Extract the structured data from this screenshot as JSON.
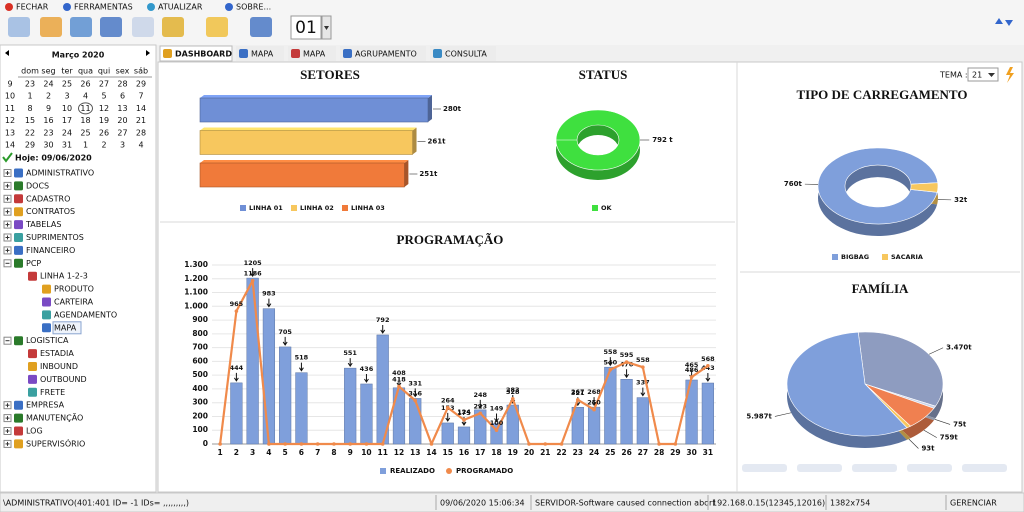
{
  "toolbar": {
    "menu": [
      "FECHAR",
      "FERRAMENTAS",
      "ATUALIZAR",
      "SOBRE..."
    ],
    "counter": "01"
  },
  "calendar": {
    "month": "Março 2020",
    "weekdays": [
      "dom",
      "seg",
      "ter",
      "qua",
      "qui",
      "sex",
      "sáb"
    ],
    "weeks": [
      {
        "number": 9,
        "days": [
          23,
          24,
          25,
          26,
          27,
          28,
          29
        ]
      },
      {
        "number": 10,
        "days": [
          1,
          2,
          3,
          4,
          5,
          6,
          7
        ]
      },
      {
        "number": 11,
        "days": [
          8,
          9,
          10,
          11,
          12,
          13,
          14
        ]
      },
      {
        "number": 12,
        "days": [
          15,
          16,
          17,
          18,
          19,
          20,
          21
        ]
      },
      {
        "number": 13,
        "days": [
          22,
          23,
          24,
          25,
          26,
          27,
          28
        ]
      },
      {
        "number": 14,
        "days": [
          29,
          30,
          31,
          1,
          2,
          3,
          4
        ]
      }
    ],
    "today": "Hoje: 09/06/2020"
  },
  "tree": [
    {
      "label": "ADMINISTRATIVO"
    },
    {
      "label": "DOCS"
    },
    {
      "label": "CADASTRO"
    },
    {
      "label": "CONTRATOS"
    },
    {
      "label": "TABELAS"
    },
    {
      "label": "SUPRIMENTOS"
    },
    {
      "label": "FINANCEIRO"
    },
    {
      "label": "PCP",
      "children": [
        {
          "label": "LINHA 1-2-3",
          "children": [
            {
              "label": "PRODUTO"
            },
            {
              "label": "CARTEIRA"
            },
            {
              "label": "AGENDAMENTO"
            },
            {
              "label": "MAPA"
            }
          ]
        }
      ]
    },
    {
      "label": "LOGISTICA",
      "children": [
        {
          "label": "ESTADIA"
        },
        {
          "label": "INBOUND"
        },
        {
          "label": "OUTBOUND"
        },
        {
          "label": "FRETE"
        }
      ]
    },
    {
      "label": "EMPRESA"
    },
    {
      "label": "MANUTENÇÃO"
    },
    {
      "label": "LOG"
    },
    {
      "label": "SUPERVISÓRIO"
    }
  ],
  "tabs": [
    "DASHBOARD",
    "MAPA",
    "MAPA",
    "AGRUPAMENTO",
    "CONSULTA"
  ],
  "theme": {
    "label": "TEMA :",
    "value": "21"
  },
  "chart_data": [
    {
      "type": "hbar",
      "title": "SETORES",
      "categories": [
        "LINHA 01",
        "LINHA 02",
        "LINHA 03"
      ],
      "values": [
        280,
        261,
        251
      ],
      "value_labels": [
        "280t",
        "261t",
        "251t"
      ],
      "colors": [
        "#6f8fd6",
        "#f7c75e",
        "#f07a3a"
      ]
    },
    {
      "type": "donut",
      "title": "STATUS",
      "categories": [
        "OK"
      ],
      "values": [
        792
      ],
      "value_labels": [
        "792 t"
      ],
      "colors": [
        "#3fe03f"
      ]
    },
    {
      "type": "donut",
      "title": "TIPO DE CARREGAMENTO",
      "categories": [
        "BIGBAG",
        "SACARIA"
      ],
      "values": [
        760,
        32
      ],
      "value_labels": [
        "760t",
        "32t"
      ],
      "colors": [
        "#7f9fdb",
        "#f7c75e"
      ]
    },
    {
      "type": "bar_line",
      "title": "PROGRAMAÇÃO",
      "categories": [
        "1",
        "2",
        "3",
        "4",
        "5",
        "6",
        "7",
        "8",
        "9",
        "10",
        "11",
        "12",
        "13",
        "14",
        "15",
        "16",
        "17",
        "18",
        "19",
        "20",
        "21",
        "22",
        "23",
        "24",
        "25",
        "26",
        "27",
        "28",
        "29",
        "30",
        "31"
      ],
      "series": [
        {
          "name": "REALIZADO",
          "kind": "bar",
          "color": "#7f9fdb",
          "values": [
            0,
            444,
            1205,
            983,
            705,
            518,
            0,
            0,
            551,
            436,
            792,
            408,
            331,
            0,
            153,
            124,
            248,
            149,
            283,
            0,
            0,
            0,
            267,
            268,
            558,
            470,
            337,
            0,
            0,
            465,
            443
          ]
        },
        {
          "name": "PROGRAMADO",
          "kind": "line",
          "color": "#f08a4b",
          "values": [
            0,
            965,
            1186,
            0,
            0,
            0,
            0,
            0,
            0,
            0,
            0,
            418,
            316,
            0,
            264,
            175,
            223,
            100,
            328,
            0,
            0,
            0,
            321,
            250,
            540,
            595,
            558,
            0,
            0,
            486,
            568
          ]
        }
      ],
      "ylim": [
        0,
        1300
      ],
      "yticks": [
        0,
        100,
        200,
        300,
        400,
        500,
        600,
        700,
        800,
        900,
        {
          "value": 1000,
          "label": "1.000"
        },
        {
          "value": 1100,
          "label": "1.100"
        },
        {
          "value": 1200,
          "label": "1.200"
        },
        {
          "value": 1300,
          "label": "1.300"
        }
      ],
      "grid": true
    },
    {
      "type": "pie",
      "title": "FAMÍLIA",
      "values": [
        3470,
        75,
        759,
        93,
        5987
      ],
      "value_labels": [
        "3.470t",
        "75t",
        "759t",
        "93t",
        "5.987t"
      ],
      "colors": [
        "#8e9cc0",
        "#c9d3ea",
        "#f08050",
        "#f7c75e",
        "#7f9fdb"
      ]
    }
  ],
  "status_bar": [
    "\\ADMINISTRATIVO(401:401 ID= -1 IDs= ,,,,,,,,,)",
    "09/06/2020 15:06:34",
    "SERVIDOR-Software caused connection abort",
    "192.168.0.15(12345,12016)",
    "1382x754",
    "GERENCIAR"
  ]
}
